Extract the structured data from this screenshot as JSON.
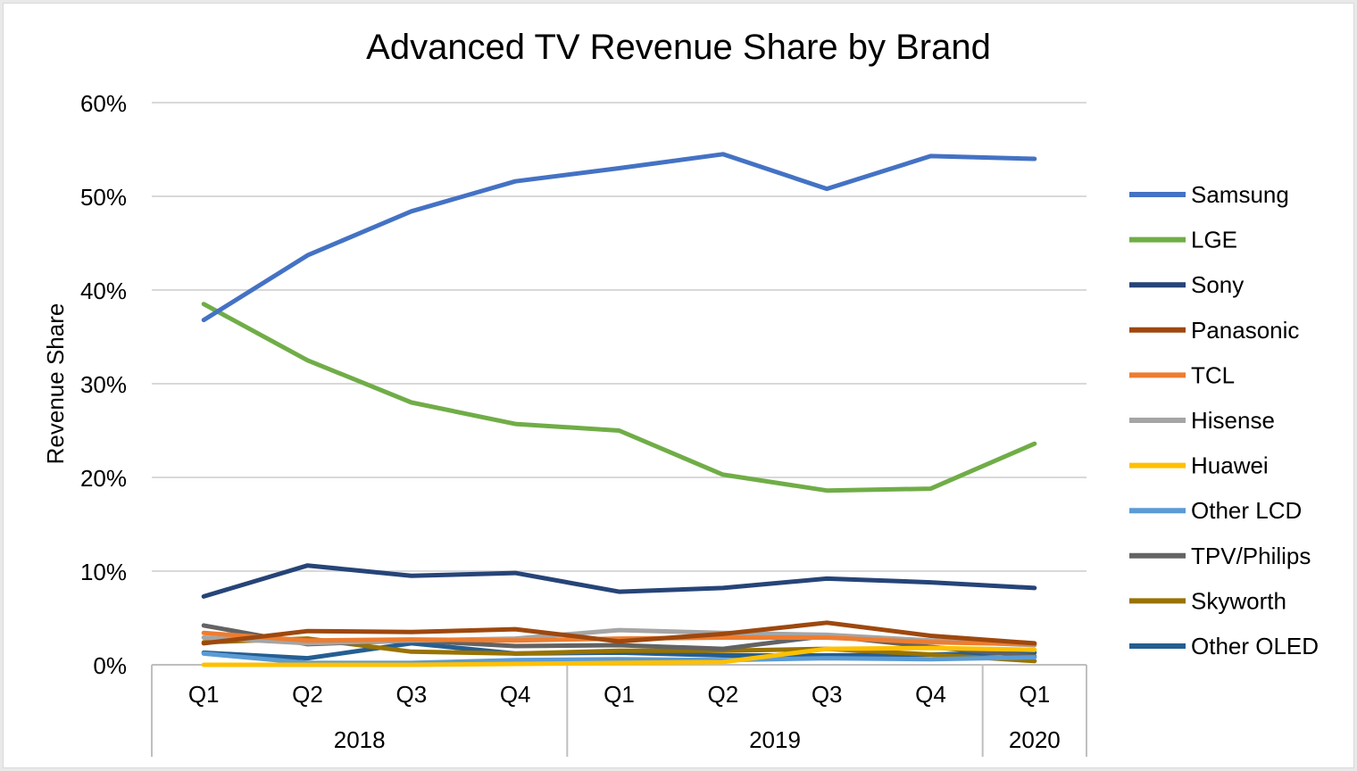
{
  "chart_data": {
    "type": "line",
    "title": "Advanced TV Revenue Share by Brand",
    "ylabel": "Revenue Share",
    "xlabel": "",
    "ylim": [
      0,
      60
    ],
    "yticks": [
      {
        "value": 0,
        "label": "0%"
      },
      {
        "value": 10,
        "label": "10%"
      },
      {
        "value": 20,
        "label": "20%"
      },
      {
        "value": 30,
        "label": "30%"
      },
      {
        "value": 40,
        "label": "40%"
      },
      {
        "value": 50,
        "label": "50%"
      },
      {
        "value": 60,
        "label": "60%"
      }
    ],
    "categories": [
      "Q1",
      "Q2",
      "Q3",
      "Q4",
      "Q1",
      "Q2",
      "Q3",
      "Q4",
      "Q1"
    ],
    "year_groups": [
      {
        "label": "2018",
        "count": 4
      },
      {
        "label": "2019",
        "count": 4
      },
      {
        "label": "2020",
        "count": 1
      }
    ],
    "grid": true,
    "legend_position": "right",
    "series": [
      {
        "name": "Samsung",
        "color": "#4472c4",
        "values": [
          36.8,
          43.7,
          48.4,
          51.6,
          53.0,
          54.5,
          50.8,
          54.3,
          54.0
        ]
      },
      {
        "name": "LGE",
        "color": "#70ad47",
        "values": [
          38.5,
          32.5,
          28.0,
          25.7,
          25.0,
          20.3,
          18.6,
          18.8,
          23.6
        ]
      },
      {
        "name": "Sony",
        "color": "#264478",
        "values": [
          7.3,
          10.6,
          9.5,
          9.8,
          7.8,
          8.2,
          9.2,
          8.8,
          8.2
        ]
      },
      {
        "name": "Panasonic",
        "color": "#9e480e",
        "values": [
          2.3,
          3.6,
          3.5,
          3.8,
          2.5,
          3.3,
          4.5,
          3.1,
          2.3
        ]
      },
      {
        "name": "TCL",
        "color": "#ed7d31",
        "values": [
          3.4,
          2.6,
          2.7,
          2.6,
          2.8,
          2.9,
          2.9,
          2.4,
          2.2
        ]
      },
      {
        "name": "Hisense",
        "color": "#a5a5a5",
        "values": [
          2.9,
          2.3,
          2.6,
          2.8,
          3.7,
          3.4,
          3.2,
          2.6,
          2.1
        ]
      },
      {
        "name": "Huawei",
        "color": "#ffc000",
        "values": [
          0.0,
          0.0,
          0.0,
          0.1,
          0.2,
          0.3,
          1.7,
          1.8,
          1.6
        ]
      },
      {
        "name": "Other LCD",
        "color": "#5b9bd5",
        "values": [
          1.2,
          0.2,
          0.2,
          0.5,
          0.6,
          0.5,
          0.7,
          0.6,
          0.8
        ]
      },
      {
        "name": "TPV/Philips",
        "color": "#636363",
        "values": [
          4.2,
          2.2,
          2.6,
          2.0,
          2.1,
          1.7,
          3.1,
          1.9,
          0.9
        ]
      },
      {
        "name": "Skyworth",
        "color": "#997300",
        "values": [
          2.4,
          2.8,
          1.4,
          1.2,
          1.5,
          1.5,
          1.7,
          1.1,
          0.4
        ]
      },
      {
        "name": "Other OLED",
        "color": "#255e91",
        "values": [
          1.3,
          0.7,
          2.3,
          1.2,
          1.3,
          1.0,
          1.0,
          1.1,
          1.3
        ]
      }
    ]
  }
}
